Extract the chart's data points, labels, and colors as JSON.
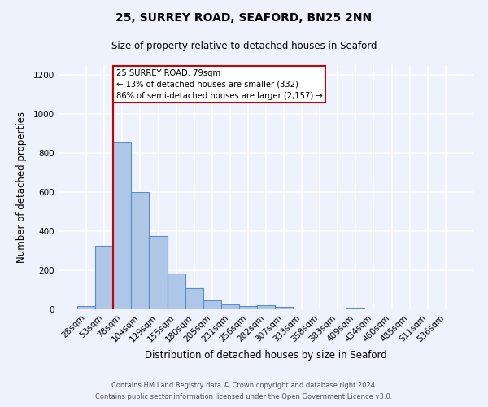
{
  "title": "25, SURREY ROAD, SEAFORD, BN25 2NN",
  "subtitle": "Size of property relative to detached houses in Seaford",
  "xlabel": "Distribution of detached houses by size in Seaford",
  "ylabel": "Number of detached properties",
  "footnote1": "Contains HM Land Registry data © Crown copyright and database right 2024.",
  "footnote2": "Contains public sector information licensed under the Open Government Licence v3.0.",
  "categories": [
    "28sqm",
    "53sqm",
    "78sqm",
    "104sqm",
    "129sqm",
    "155sqm",
    "180sqm",
    "205sqm",
    "231sqm",
    "256sqm",
    "282sqm",
    "307sqm",
    "333sqm",
    "358sqm",
    "383sqm",
    "409sqm",
    "434sqm",
    "460sqm",
    "485sqm",
    "511sqm",
    "536sqm"
  ],
  "values": [
    15,
    325,
    855,
    600,
    375,
    185,
    107,
    47,
    25,
    17,
    22,
    11,
    0,
    0,
    0,
    10,
    0,
    0,
    0,
    0,
    0
  ],
  "bar_color": "#aec6e8",
  "bar_edge_color": "#5a8fc2",
  "background_color": "#eef2fc",
  "grid_color": "#ffffff",
  "vline_index": 2,
  "vline_color": "#cc0000",
  "annotation_text": "25 SURREY ROAD: 79sqm\n← 13% of detached houses are smaller (332)\n86% of semi-detached houses are larger (2,157) →",
  "annotation_box_color": "#ffffff",
  "annotation_box_edge_color": "#cc0000",
  "ylim": [
    0,
    1250
  ],
  "yticks": [
    0,
    200,
    400,
    600,
    800,
    1000,
    1200
  ]
}
